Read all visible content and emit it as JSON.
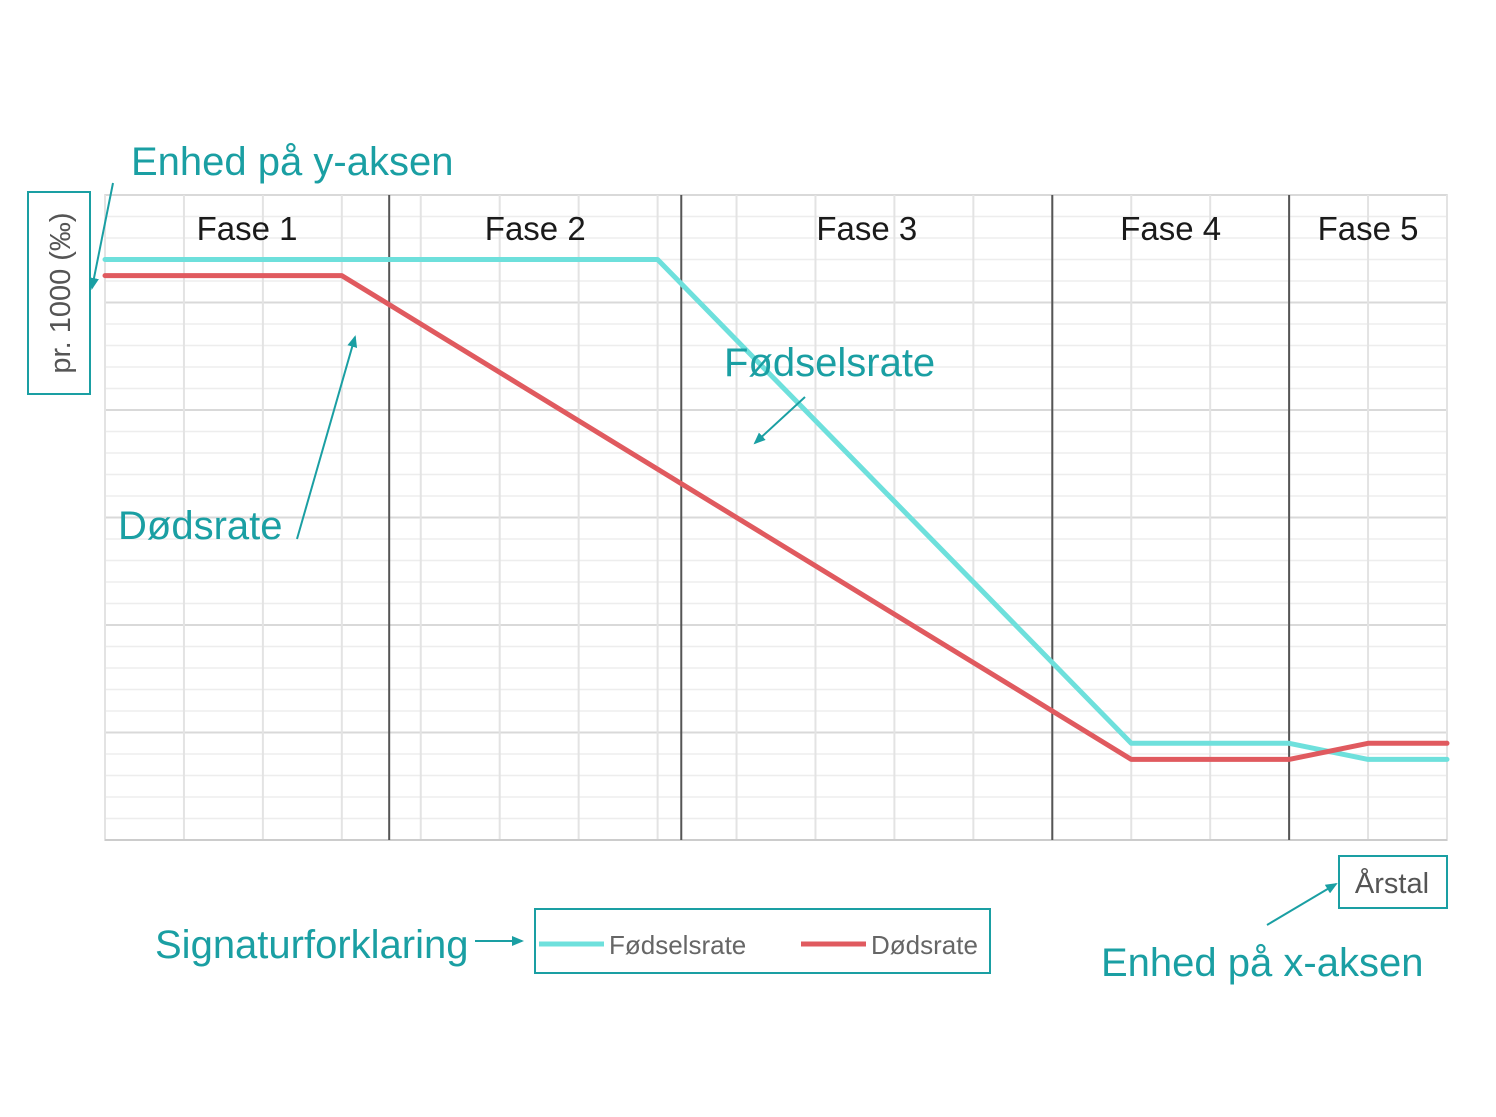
{
  "chart_data": {
    "type": "line",
    "x": [
      0,
      1,
      2,
      3,
      4,
      5,
      6,
      7,
      8,
      9,
      10,
      11,
      12,
      13,
      14,
      15,
      16,
      17
    ],
    "series": [
      {
        "name": "Fødselsrate",
        "color": "#6ee0dc",
        "values": [
          90,
          90,
          90,
          90,
          90,
          90,
          90,
          90,
          77.5,
          65,
          52.5,
          40,
          27.5,
          15,
          15,
          15,
          12.5,
          12.5
        ]
      },
      {
        "name": "Dødsrate",
        "color": "#e05a5f",
        "values": [
          87.5,
          87.5,
          87.5,
          87.5,
          80,
          72.5,
          65,
          57.5,
          50,
          42.5,
          35,
          27.5,
          20,
          12.5,
          12.5,
          12.5,
          15,
          15
        ]
      }
    ],
    "ylim": [
      0,
      100
    ],
    "xlim": [
      0,
      17
    ],
    "phases": [
      {
        "label": "Fase 1",
        "end": 3.6
      },
      {
        "label": "Fase 2",
        "end": 7.3
      },
      {
        "label": "Fase 3",
        "end": 12
      },
      {
        "label": "Fase 4",
        "end": 15
      },
      {
        "label": "Fase 5",
        "end": 17
      }
    ],
    "ylabel": "pr. 1000 (‰)",
    "xlabel": "Årstal",
    "grid": true
  },
  "annotations": {
    "y_unit": "Enhed på y-aksen",
    "x_unit": "Enhed på x-aksen",
    "birth_label": "Fødselsrate",
    "death_label": "Dødsrate",
    "legend_label": "Signaturforklaring"
  },
  "colors": {
    "accent": "#1a9fa3",
    "grid": "#e3e3e3",
    "divider": "#555555"
  }
}
